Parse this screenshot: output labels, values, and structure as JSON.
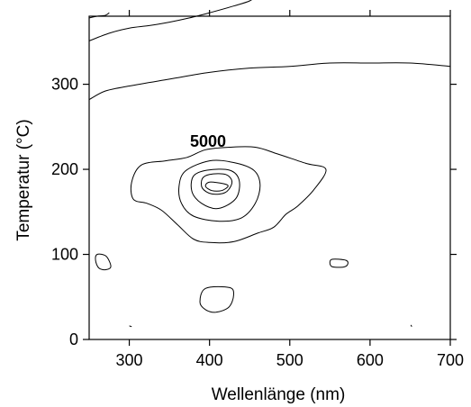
{
  "chart_data": {
    "type": "contour",
    "xlabel": "Wellenlänge (nm)",
    "ylabel": "Temperatur (°C)",
    "xlim": [
      250,
      700
    ],
    "ylim": [
      0,
      380
    ],
    "x_ticks": [
      300,
      400,
      500,
      600,
      700
    ],
    "y_ticks": [
      0,
      100,
      200,
      300
    ],
    "grid": false,
    "contour_label": "5000",
    "contours": [
      {
        "id": "top-1",
        "points": [
          [
            250,
            378
          ],
          [
            260,
            380
          ],
          [
            270,
            381
          ],
          [
            275,
            384
          ]
        ]
      },
      {
        "id": "top-2",
        "points": [
          [
            250,
            351
          ],
          [
            275,
            360
          ],
          [
            300,
            366
          ],
          [
            325,
            369
          ],
          [
            350,
            373
          ],
          [
            375,
            378
          ],
          [
            400,
            384
          ],
          [
            430,
            392
          ],
          [
            450,
            398
          ],
          [
            460,
            405
          ]
        ]
      },
      {
        "id": "top-3",
        "points": [
          [
            250,
            282
          ],
          [
            270,
            292
          ],
          [
            300,
            298
          ],
          [
            350,
            306
          ],
          [
            400,
            314
          ],
          [
            450,
            319
          ],
          [
            500,
            321
          ],
          [
            550,
            325
          ],
          [
            600,
            325
          ],
          [
            650,
            325
          ],
          [
            700,
            321
          ]
        ]
      },
      {
        "id": "outer-5000",
        "closed": true,
        "points": [
          [
            372,
            214
          ],
          [
            395,
            223
          ],
          [
            425,
            226
          ],
          [
            457,
            226
          ],
          [
            485,
            218
          ],
          [
            520,
            207
          ],
          [
            545,
            200
          ],
          [
            530,
            176
          ],
          [
            510,
            157
          ],
          [
            495,
            147
          ],
          [
            480,
            132
          ],
          [
            460,
            125
          ],
          [
            430,
            115
          ],
          [
            400,
            114
          ],
          [
            380,
            118
          ],
          [
            360,
            135
          ],
          [
            340,
            152
          ],
          [
            322,
            160
          ],
          [
            305,
            165
          ],
          [
            303,
            185
          ],
          [
            315,
            205
          ],
          [
            345,
            210
          ]
        ]
      },
      {
        "id": "mid-1",
        "closed": true,
        "points": [
          [
            400,
            210
          ],
          [
            430,
            208
          ],
          [
            455,
            199
          ],
          [
            463,
            182
          ],
          [
            457,
            160
          ],
          [
            440,
            143
          ],
          [
            412,
            139
          ],
          [
            380,
            145
          ],
          [
            365,
            160
          ],
          [
            362,
            180
          ],
          [
            370,
            198
          ]
        ]
      },
      {
        "id": "mid-2",
        "closed": true,
        "points": [
          [
            397,
            199
          ],
          [
            425,
            199
          ],
          [
            437,
            187
          ],
          [
            433,
            166
          ],
          [
            411,
            154
          ],
          [
            390,
            160
          ],
          [
            378,
            174
          ],
          [
            380,
            192
          ]
        ]
      },
      {
        "id": "mid-3",
        "closed": true,
        "points": [
          [
            400,
            194
          ],
          [
            420,
            194
          ],
          [
            428,
            185
          ],
          [
            420,
            173
          ],
          [
            403,
            171
          ],
          [
            391,
            178
          ],
          [
            391,
            189
          ]
        ]
      },
      {
        "id": "inner",
        "closed": true,
        "points": [
          [
            400,
            185
          ],
          [
            418,
            183
          ],
          [
            423,
            180
          ],
          [
            415,
            175
          ],
          [
            403,
            175
          ],
          [
            395,
            180
          ]
        ]
      },
      {
        "id": "blob-left",
        "closed": true,
        "points": [
          [
            260,
            100
          ],
          [
            271,
            98
          ],
          [
            277,
            86
          ],
          [
            271,
            82
          ],
          [
            262,
            84
          ],
          [
            258,
            93
          ]
        ]
      },
      {
        "id": "blob-right",
        "closed": true,
        "points": [
          [
            552,
            94
          ],
          [
            570,
            93
          ],
          [
            572,
            88
          ],
          [
            566,
            85
          ],
          [
            552,
            86
          ]
        ]
      },
      {
        "id": "blob-bottom",
        "closed": true,
        "points": [
          [
            395,
            60
          ],
          [
            425,
            61
          ],
          [
            430,
            52
          ],
          [
            424,
            38
          ],
          [
            408,
            32
          ],
          [
            395,
            35
          ],
          [
            388,
            44
          ]
        ]
      },
      {
        "id": "dot-1",
        "points": [
          [
            300,
            16
          ],
          [
            303,
            15
          ]
        ]
      },
      {
        "id": "dot-2",
        "points": [
          [
            651,
            17
          ],
          [
            652,
            15
          ]
        ]
      }
    ]
  }
}
